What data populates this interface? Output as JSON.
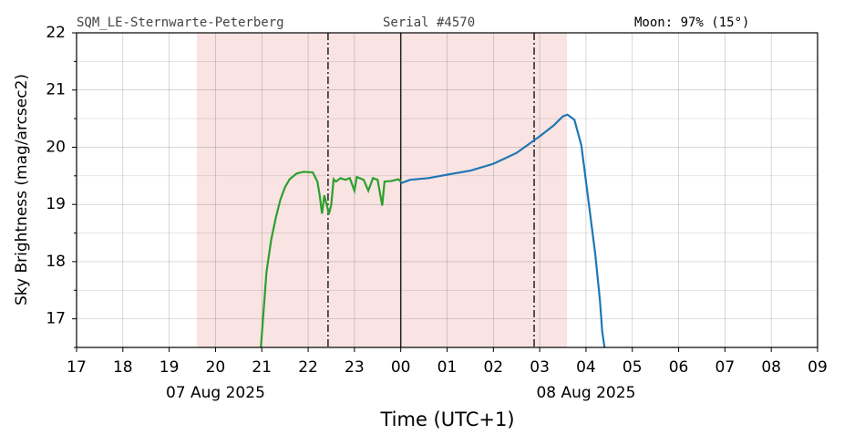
{
  "chart_data": {
    "type": "line",
    "header_left": "SQM_LE-Sternwarte-Peterberg",
    "header_center": "Serial #4570",
    "header_right": "Moon: 97% (15°)",
    "y_label": "Sky Brightness (mag/arcsec2)",
    "x_label": "Time (UTC+1)",
    "xlim": [
      17,
      33
    ],
    "ylim": [
      16.5,
      22
    ],
    "xticks": [
      17,
      18,
      19,
      20,
      21,
      22,
      23,
      {
        "value": 24,
        "label": "00"
      },
      {
        "value": 25,
        "label": "01"
      },
      {
        "value": 26,
        "label": "02"
      },
      {
        "value": 27,
        "label": "03"
      },
      {
        "value": 28,
        "label": "04"
      },
      {
        "value": 29,
        "label": "05"
      },
      {
        "value": 30,
        "label": "06"
      },
      {
        "value": 31,
        "label": "07"
      },
      {
        "value": 32,
        "label": "08"
      },
      {
        "value": 33,
        "label": "09"
      }
    ],
    "date_ticks": [
      {
        "value": 20,
        "label": "07 Aug 2025"
      },
      {
        "value": 28,
        "label": "08 Aug 2025"
      }
    ],
    "yticks": [
      17,
      18,
      19,
      20,
      21,
      22
    ],
    "yminorticks": [
      16.5,
      17.5,
      18.5,
      19.5,
      20.5,
      21.5
    ],
    "grid": true,
    "shaded_region": [
      19.6,
      27.59
    ],
    "shade_color": "#f9e3e3",
    "dashdot_lines": [
      22.43,
      26.88
    ],
    "solid_line": 24,
    "series": [
      {
        "color": "#2ca02c",
        "x": [
          20.98,
          21.1,
          21.2,
          21.3,
          21.4,
          21.5,
          21.6,
          21.75,
          21.9,
          22.1,
          22.2,
          22.25,
          22.3,
          22.35,
          22.4,
          22.45,
          22.5,
          22.55,
          22.6,
          22.7,
          22.8,
          22.9,
          23.0,
          23.05,
          23.2,
          23.3,
          23.4,
          23.5,
          23.6,
          23.65,
          23.8,
          23.95,
          24.0
        ],
        "values": [
          16.5,
          17.81,
          18.37,
          18.76,
          19.08,
          19.3,
          19.44,
          19.54,
          19.57,
          19.56,
          19.4,
          19.16,
          18.84,
          19.16,
          19.0,
          18.83,
          19.0,
          19.44,
          19.4,
          19.46,
          19.43,
          19.46,
          19.24,
          19.48,
          19.43,
          19.24,
          19.46,
          19.43,
          18.98,
          19.4,
          19.41,
          19.44,
          19.4
        ]
      },
      {
        "color": "#1f77b4",
        "x": [
          24.0,
          24.2,
          24.6,
          25.0,
          25.5,
          26.0,
          26.5,
          27.0,
          27.3,
          27.5,
          27.6,
          27.75,
          27.9,
          28.0,
          28.2,
          28.3,
          28.35,
          28.4
        ],
        "values": [
          19.37,
          19.43,
          19.46,
          19.52,
          19.59,
          19.71,
          19.9,
          20.19,
          20.38,
          20.54,
          20.57,
          20.48,
          20.03,
          19.4,
          18.13,
          17.33,
          16.78,
          16.5
        ]
      }
    ]
  }
}
